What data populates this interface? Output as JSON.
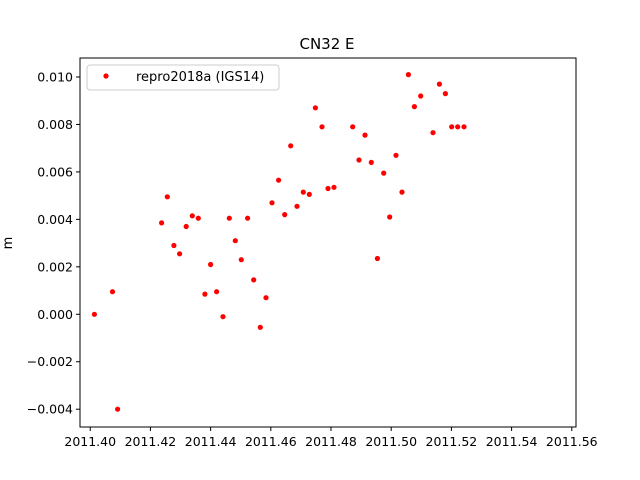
{
  "chart_data": {
    "type": "scatter",
    "title": "CN32 E",
    "xlabel": "",
    "ylabel": "m",
    "xlim": [
      2011.3966,
      2011.5614
    ],
    "ylim": [
      -0.00475,
      0.0108
    ],
    "xticks": [
      2011.4,
      2011.42,
      2011.44,
      2011.46,
      2011.48,
      2011.5,
      2011.52,
      2011.54,
      2011.56
    ],
    "xtick_labels": [
      "2011.40",
      "2011.42",
      "2011.44",
      "2011.46",
      "2011.48",
      "2011.50",
      "2011.52",
      "2011.54",
      "2011.56"
    ],
    "yticks": [
      -0.004,
      -0.002,
      0.0,
      0.002,
      0.004,
      0.006,
      0.008,
      0.01
    ],
    "ytick_labels": [
      "−0.004",
      "−0.002",
      "0.000",
      "0.002",
      "0.004",
      "0.006",
      "0.008",
      "0.010"
    ],
    "grid": false,
    "legend_position": "top-left",
    "series": [
      {
        "name": "repro2018a (IGS14)",
        "color": "#ff0000",
        "x": [
          2011.4014,
          2011.4074,
          2011.4091,
          2011.4237,
          2011.4256,
          2011.4278,
          2011.4297,
          2011.4319,
          2011.4339,
          2011.4359,
          2011.4381,
          2011.44,
          2011.442,
          2011.4441,
          2011.4462,
          2011.4482,
          2011.4502,
          2011.4523,
          2011.4543,
          2011.4565,
          2011.4584,
          2011.4604,
          2011.4626,
          2011.4646,
          2011.4666,
          2011.4687,
          2011.4708,
          2011.4728,
          2011.4748,
          2011.477,
          2011.479,
          2011.481,
          2011.4872,
          2011.4893,
          2011.4913,
          2011.4934,
          2011.4954,
          2011.4975,
          2011.4995,
          2011.5016,
          2011.5036,
          2011.5057,
          2011.5077,
          2011.5098,
          2011.5139,
          2011.516,
          2011.518,
          2011.5201,
          2011.5221,
          2011.5242
        ],
        "y": [
          0.0,
          0.00095,
          -0.004,
          0.00385,
          0.00495,
          0.0029,
          0.00255,
          0.0037,
          0.00415,
          0.00405,
          0.00085,
          0.0021,
          0.00095,
          -0.0001,
          0.00405,
          0.0031,
          0.0023,
          0.00405,
          0.00145,
          -0.00055,
          0.0007,
          0.0047,
          0.00565,
          0.0042,
          0.0071,
          0.00455,
          0.00515,
          0.00505,
          0.0087,
          0.0079,
          0.0053,
          0.00535,
          0.0079,
          0.0065,
          0.00755,
          0.0064,
          0.00235,
          0.00595,
          0.0041,
          0.0067,
          0.00515,
          0.0101,
          0.00875,
          0.0092,
          0.00765,
          0.0097,
          0.0093,
          0.0079,
          0.0079,
          0.0079
        ]
      }
    ]
  }
}
